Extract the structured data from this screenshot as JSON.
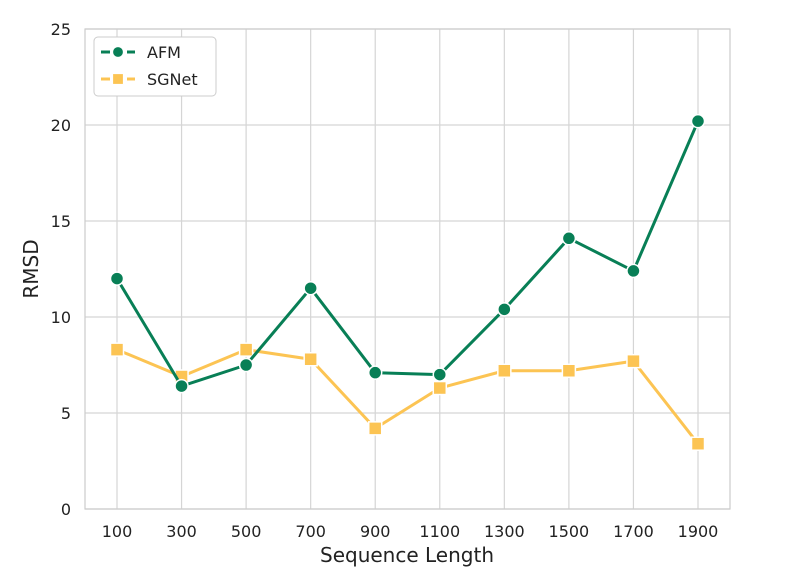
{
  "chart_data": {
    "type": "line",
    "title": "",
    "xlabel": "Sequence Length",
    "ylabel": "RMSD",
    "categories": [
      "100",
      "300",
      "500",
      "700",
      "900",
      "1100",
      "1300",
      "1500",
      "1700",
      "1900"
    ],
    "ylim": [
      0,
      25
    ],
    "yticks": [
      "0",
      "5",
      "10",
      "15",
      "20",
      "25"
    ],
    "grid": true,
    "legend_position": "top-left",
    "series": [
      {
        "name": "AFM",
        "color": "#087f56",
        "marker": "circle",
        "values": [
          12.0,
          6.4,
          7.5,
          11.5,
          7.1,
          7.0,
          10.4,
          14.1,
          12.4,
          20.2
        ]
      },
      {
        "name": "SGNet",
        "color": "#fcc453",
        "marker": "square",
        "values": [
          8.3,
          6.9,
          8.3,
          7.8,
          4.2,
          6.3,
          7.2,
          7.2,
          7.7,
          3.4
        ]
      }
    ]
  }
}
